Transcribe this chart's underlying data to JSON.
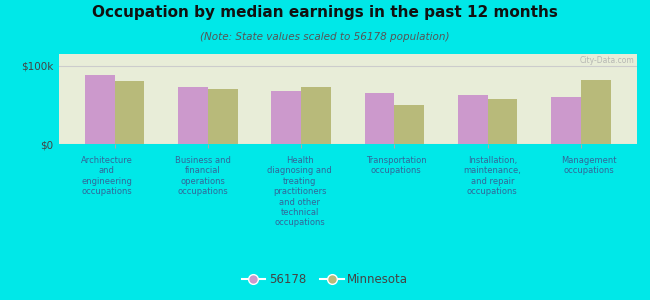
{
  "title": "Occupation by median earnings in the past 12 months",
  "subtitle": "(Note: State values scaled to 56178 population)",
  "background_color": "#00e8e8",
  "plot_bg_top_color": "#e8edd8",
  "plot_bg_bottom_color": "#d0dcc0",
  "categories": [
    "Architecture\nand\nengineering\noccupations",
    "Business and\nfinancial\noperations\noccupations",
    "Health\ndiagnosing and\ntreating\npractitioners\nand other\ntechnical\noccupations",
    "Transportation\noccupations",
    "Installation,\nmaintenance,\nand repair\noccupations",
    "Management\noccupations"
  ],
  "values_56178": [
    88000,
    73000,
    68000,
    65000,
    62000,
    60000
  ],
  "values_minnesota": [
    80000,
    70000,
    73000,
    50000,
    57000,
    82000
  ],
  "color_56178": "#cc99cc",
  "color_minnesota": "#b8ba7a",
  "ylim": [
    0,
    115000
  ],
  "ytick_labels": [
    "$0",
    "$100k"
  ],
  "ytick_values": [
    0,
    100000
  ],
  "legend_labels": [
    "56178",
    "Minnesota"
  ],
  "bar_width": 0.32,
  "watermark": "City-Data.com"
}
